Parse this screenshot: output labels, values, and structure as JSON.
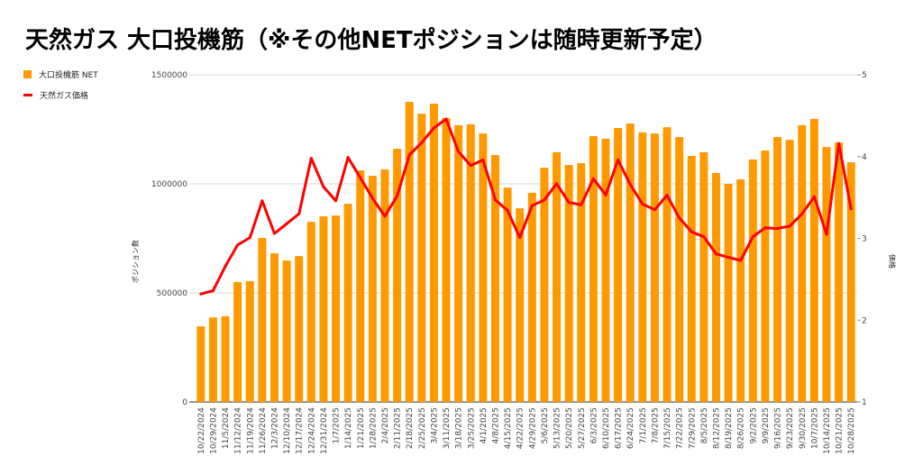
{
  "title": "天然ガス 大口投機筋（※その他NETポジションは随時更新予定）",
  "colors": {
    "bar": "#ff9900",
    "line": "#ff0000",
    "grid": "#d9d9d9"
  },
  "chart_data": {
    "type": "bar+line",
    "title": "天然ガス 大口投機筋（※その他NETポジションは随時更新予定）",
    "xlabel": "",
    "ylabel": "ポジション数",
    "y2label": "価格",
    "ylim": [
      0,
      1500000
    ],
    "y2lim": [
      1,
      5
    ],
    "yticks": [
      "0",
      "500000",
      "1000000",
      "1500000"
    ],
    "y2ticks": [
      "1",
      "2",
      "3",
      "4",
      "5"
    ],
    "grid": true,
    "legend_position": "top-left",
    "categories": [
      "10/22/2024",
      "10/29/2024",
      "11/5/2024",
      "11/12/2024",
      "11/19/2024",
      "11/26/2024",
      "12/3/2024",
      "12/10/2024",
      "12/17/2024",
      "12/24/2024",
      "12/31/2024",
      "1/7/2025",
      "1/14/2025",
      "1/21/2025",
      "1/28/2025",
      "2/4/2025",
      "2/11/2025",
      "2/18/2025",
      "2/25/2025",
      "3/4/2025",
      "3/11/2025",
      "3/18/2025",
      "3/25/2025",
      "4/1/2025",
      "4/8/2025",
      "4/15/2025",
      "4/22/2025",
      "4/29/2025",
      "5/6/2025",
      "5/13/2025",
      "5/20/2025",
      "5/27/2025",
      "6/3/2025",
      "6/10/2025",
      "6/17/2025",
      "6/24/2025",
      "7/1/2025",
      "7/8/2025",
      "7/15/2025",
      "7/22/2025",
      "7/29/2025",
      "8/5/2025",
      "8/12/2025",
      "8/19/2025",
      "8/26/2025",
      "9/2/2025",
      "9/9/2025",
      "9/16/2025",
      "9/23/2025",
      "9/30/2025",
      "10/7/2025",
      "10/14/2025",
      "10/21/2025",
      "10/28/2025"
    ],
    "series": [
      {
        "name": "大口投機筋  NET",
        "type": "bar",
        "axis": "left",
        "values": [
          347000,
          388000,
          393000,
          550000,
          554000,
          752000,
          682000,
          649000,
          669000,
          826000,
          851000,
          855000,
          909000,
          1062000,
          1037000,
          1066000,
          1161000,
          1376000,
          1322000,
          1368000,
          1302000,
          1269000,
          1273000,
          1231000,
          1132000,
          983000,
          888000,
          959000,
          1074000,
          1145000,
          1087000,
          1095000,
          1219000,
          1207000,
          1256000,
          1277000,
          1236000,
          1231000,
          1260000,
          1215000,
          1128000,
          1145000,
          1050000,
          1000000,
          1021000,
          1112000,
          1153000,
          1215000,
          1202000,
          1269000,
          1298000,
          1169000,
          1190000,
          1099000
        ]
      },
      {
        "name": "天然ガス価格",
        "type": "line",
        "axis": "right",
        "values": [
          2.32,
          2.36,
          2.66,
          2.92,
          3.01,
          3.46,
          3.06,
          3.18,
          3.3,
          3.98,
          3.63,
          3.46,
          3.99,
          3.74,
          3.49,
          3.27,
          3.52,
          4.02,
          4.17,
          4.35,
          4.46,
          4.06,
          3.89,
          3.96,
          3.47,
          3.34,
          3.01,
          3.4,
          3.47,
          3.67,
          3.44,
          3.41,
          3.73,
          3.53,
          3.96,
          3.66,
          3.42,
          3.35,
          3.53,
          3.25,
          3.08,
          3.02,
          2.81,
          2.77,
          2.73,
          3.02,
          3.13,
          3.12,
          3.15,
          3.3,
          3.51,
          3.05,
          4.16,
          3.36
        ]
      }
    ]
  }
}
